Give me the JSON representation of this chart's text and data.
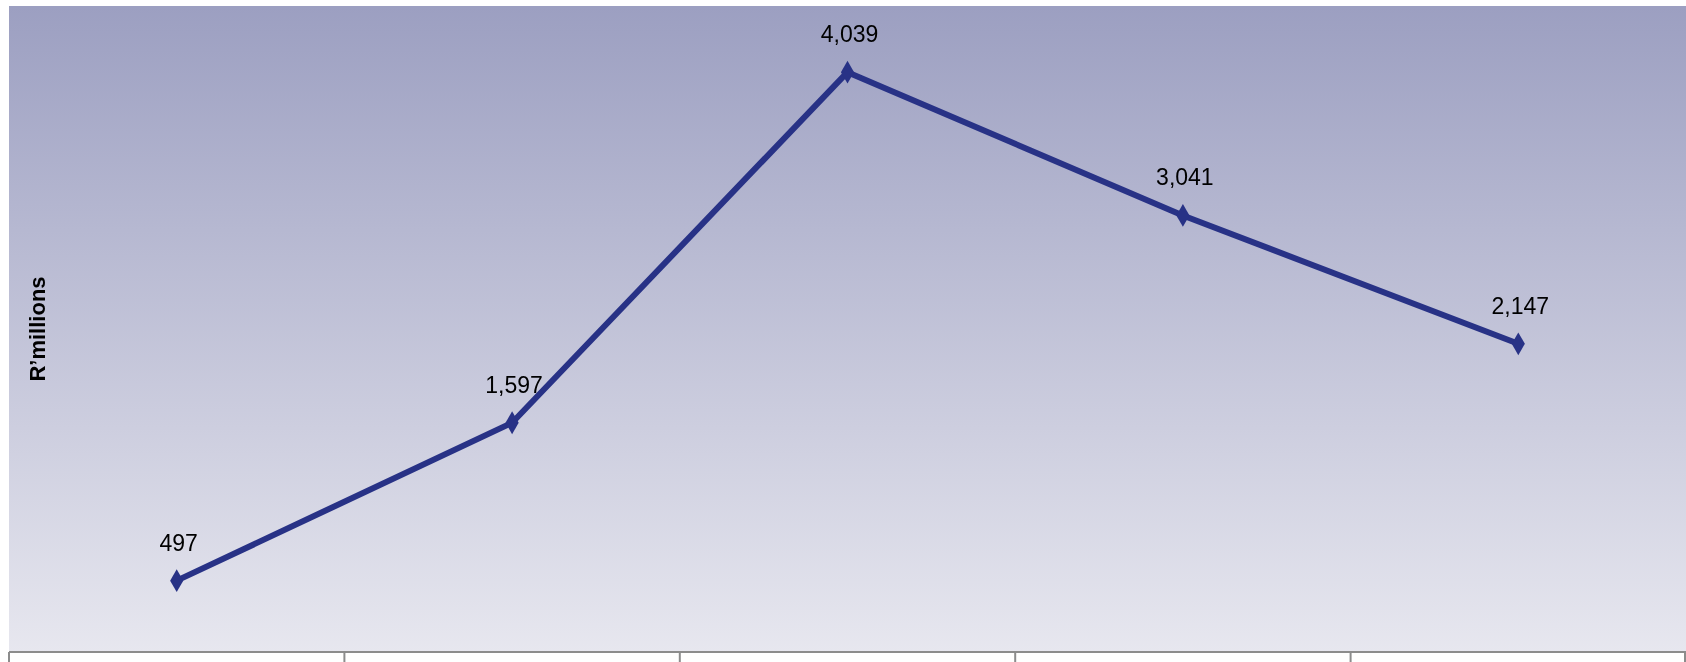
{
  "chart_data": {
    "type": "line",
    "ylabel": "R’millions",
    "categories": [
      null,
      null,
      null,
      null,
      null
    ],
    "series": [
      {
        "color": "#283286",
        "values": [
          497,
          1597,
          4039,
          3041,
          2147
        ],
        "value_labels": [
          "497",
          "1,597",
          "4,039",
          "3,041",
          "2,147"
        ]
      }
    ],
    "ylim": [
      0,
      4500
    ],
    "marker": "diamond",
    "line_style": "solid",
    "grid": false
  }
}
